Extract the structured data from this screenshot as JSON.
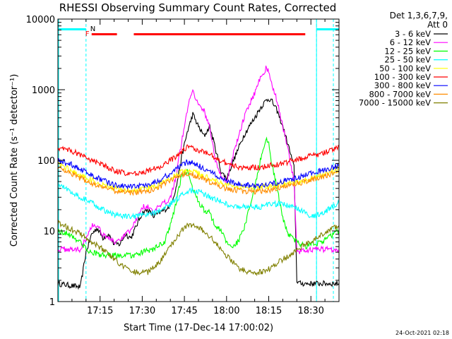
{
  "chart_data": {
    "type": "line",
    "title": "RHESSI Observing Summary Count Rates, Corrected",
    "xlabel": "Start Time (17-Dec-14 17:00:02)",
    "ylabel": "Corrected Count Rate (s⁻¹ detector⁻¹)",
    "yscale": "log",
    "ylim": [
      1,
      10000
    ],
    "xlim_minutes": [
      0,
      100
    ],
    "x_ticks": [
      {
        "minute": 15,
        "label": "17:15"
      },
      {
        "minute": 30,
        "label": "17:30"
      },
      {
        "minute": 45,
        "label": "17:45"
      },
      {
        "minute": 60,
        "label": "18:00"
      },
      {
        "minute": 75,
        "label": "18:15"
      },
      {
        "minute": 90,
        "label": "18:30"
      }
    ],
    "y_ticks": [
      {
        "value": 1,
        "label": "1"
      },
      {
        "value": 10,
        "label": "10"
      },
      {
        "value": 100,
        "label": "100"
      },
      {
        "value": 1000,
        "label": "1000"
      },
      {
        "value": 10000,
        "label": "10000"
      }
    ],
    "legend_header": [
      "Det 1,3,6,7,9,",
      "Att 0"
    ],
    "legend_position": "right",
    "flags": {
      "night_label": "N",
      "flare_label": "F",
      "night_color": "#00ffff",
      "flare_color": "#ff0000",
      "night_intervals": [
        [
          0,
          10
        ],
        [
          92,
          100
        ]
      ],
      "flare_intervals": [
        [
          12,
          21
        ],
        [
          27,
          88
        ]
      ],
      "night_boundaries": [
        10,
        92,
        98
      ]
    },
    "series": [
      {
        "name": "3 - 6 keV",
        "color": "#000000",
        "points": [
          [
            0,
            1.8
          ],
          [
            4,
            1.7
          ],
          [
            8,
            1.6
          ],
          [
            10,
            5
          ],
          [
            12,
            9
          ],
          [
            14,
            11
          ],
          [
            16,
            8
          ],
          [
            18,
            9
          ],
          [
            20,
            6.5
          ],
          [
            22,
            6.5
          ],
          [
            24,
            9
          ],
          [
            26,
            8
          ],
          [
            28,
            12
          ],
          [
            30,
            18
          ],
          [
            32,
            20
          ],
          [
            34,
            16
          ],
          [
            36,
            18
          ],
          [
            38,
            20
          ],
          [
            40,
            23
          ],
          [
            42,
            40
          ],
          [
            44,
            110
          ],
          [
            46,
            250
          ],
          [
            48,
            450
          ],
          [
            50,
            300
          ],
          [
            52,
            220
          ],
          [
            54,
            300
          ],
          [
            56,
            150
          ],
          [
            58,
            70
          ],
          [
            60,
            55
          ],
          [
            62,
            90
          ],
          [
            64,
            140
          ],
          [
            66,
            220
          ],
          [
            68,
            300
          ],
          [
            70,
            400
          ],
          [
            72,
            550
          ],
          [
            74,
            700
          ],
          [
            75,
            750
          ],
          [
            76,
            700
          ],
          [
            78,
            500
          ],
          [
            80,
            300
          ],
          [
            82,
            160
          ],
          [
            84,
            80
          ],
          [
            85,
            2
          ],
          [
            86,
            1.8
          ],
          [
            90,
            1.8
          ],
          [
            95,
            1.8
          ],
          [
            100,
            1.8
          ]
        ]
      },
      {
        "name": "6 - 12 keV",
        "color": "#ff00ff",
        "points": [
          [
            0,
            5.5
          ],
          [
            4,
            5.5
          ],
          [
            8,
            5.5
          ],
          [
            10,
            8
          ],
          [
            12,
            12
          ],
          [
            14,
            12
          ],
          [
            16,
            9
          ],
          [
            18,
            8
          ],
          [
            20,
            7
          ],
          [
            22,
            7
          ],
          [
            24,
            9
          ],
          [
            26,
            10
          ],
          [
            28,
            15
          ],
          [
            30,
            22
          ],
          [
            32,
            22
          ],
          [
            34,
            18
          ],
          [
            36,
            22
          ],
          [
            38,
            25
          ],
          [
            40,
            30
          ],
          [
            42,
            60
          ],
          [
            44,
            180
          ],
          [
            46,
            500
          ],
          [
            47,
            800
          ],
          [
            48,
            1000
          ],
          [
            50,
            600
          ],
          [
            52,
            500
          ],
          [
            54,
            300
          ],
          [
            56,
            100
          ],
          [
            58,
            60
          ],
          [
            60,
            50
          ],
          [
            62,
            110
          ],
          [
            64,
            200
          ],
          [
            66,
            380
          ],
          [
            68,
            600
          ],
          [
            70,
            900
          ],
          [
            72,
            1500
          ],
          [
            74,
            2000
          ],
          [
            75,
            1800
          ],
          [
            76,
            1200
          ],
          [
            78,
            700
          ],
          [
            80,
            300
          ],
          [
            82,
            130
          ],
          [
            84,
            50
          ],
          [
            85,
            5
          ],
          [
            90,
            5.5
          ],
          [
            95,
            5.5
          ],
          [
            100,
            5.5
          ]
        ]
      },
      {
        "name": "12 - 25 keV",
        "color": "#00ff00",
        "points": [
          [
            0,
            10
          ],
          [
            4,
            9
          ],
          [
            8,
            7
          ],
          [
            10,
            5.5
          ],
          [
            12,
            5
          ],
          [
            16,
            4.5
          ],
          [
            20,
            4.5
          ],
          [
            24,
            4.5
          ],
          [
            28,
            4.5
          ],
          [
            30,
            5
          ],
          [
            34,
            5.5
          ],
          [
            38,
            7
          ],
          [
            40,
            12
          ],
          [
            42,
            25
          ],
          [
            44,
            60
          ],
          [
            46,
            70
          ],
          [
            48,
            40
          ],
          [
            50,
            25
          ],
          [
            52,
            20
          ],
          [
            54,
            18
          ],
          [
            56,
            12
          ],
          [
            58,
            10
          ],
          [
            60,
            7
          ],
          [
            62,
            6
          ],
          [
            64,
            7
          ],
          [
            66,
            10
          ],
          [
            68,
            20
          ],
          [
            70,
            40
          ],
          [
            72,
            100
          ],
          [
            74,
            200
          ],
          [
            75,
            180
          ],
          [
            76,
            90
          ],
          [
            78,
            40
          ],
          [
            80,
            15
          ],
          [
            82,
            9
          ],
          [
            85,
            7
          ],
          [
            88,
            6
          ],
          [
            90,
            6.5
          ],
          [
            94,
            7
          ],
          [
            98,
            9
          ],
          [
            100,
            10
          ]
        ]
      },
      {
        "name": "25 - 50 keV",
        "color": "#00ffff",
        "points": [
          [
            0,
            45
          ],
          [
            4,
            38
          ],
          [
            8,
            30
          ],
          [
            12,
            25
          ],
          [
            16,
            20
          ],
          [
            20,
            17
          ],
          [
            24,
            16
          ],
          [
            28,
            16
          ],
          [
            32,
            17
          ],
          [
            36,
            19
          ],
          [
            40,
            24
          ],
          [
            44,
            32
          ],
          [
            46,
            36
          ],
          [
            48,
            38
          ],
          [
            50,
            36
          ],
          [
            52,
            33
          ],
          [
            56,
            28
          ],
          [
            60,
            24
          ],
          [
            64,
            22
          ],
          [
            68,
            22
          ],
          [
            72,
            22
          ],
          [
            76,
            24
          ],
          [
            80,
            24
          ],
          [
            84,
            22
          ],
          [
            88,
            18
          ],
          [
            90,
            16
          ],
          [
            94,
            18
          ],
          [
            98,
            22
          ],
          [
            100,
            25
          ]
        ]
      },
      {
        "name": "50 - 100 keV",
        "color": "#ffff00",
        "points": [
          [
            0,
            90
          ],
          [
            4,
            75
          ],
          [
            8,
            62
          ],
          [
            12,
            52
          ],
          [
            16,
            45
          ],
          [
            20,
            40
          ],
          [
            24,
            38
          ],
          [
            28,
            38
          ],
          [
            32,
            40
          ],
          [
            36,
            45
          ],
          [
            40,
            55
          ],
          [
            44,
            68
          ],
          [
            46,
            72
          ],
          [
            48,
            70
          ],
          [
            50,
            65
          ],
          [
            52,
            60
          ],
          [
            56,
            52
          ],
          [
            60,
            45
          ],
          [
            64,
            42
          ],
          [
            68,
            41
          ],
          [
            72,
            42
          ],
          [
            76,
            44
          ],
          [
            80,
            46
          ],
          [
            84,
            48
          ],
          [
            88,
            52
          ],
          [
            90,
            55
          ],
          [
            94,
            62
          ],
          [
            98,
            70
          ],
          [
            100,
            75
          ]
        ]
      },
      {
        "name": "100 - 300 keV",
        "color": "#ff0000",
        "points": [
          [
            0,
            150
          ],
          [
            4,
            140
          ],
          [
            8,
            120
          ],
          [
            12,
            100
          ],
          [
            16,
            85
          ],
          [
            20,
            72
          ],
          [
            24,
            65
          ],
          [
            28,
            65
          ],
          [
            32,
            70
          ],
          [
            36,
            80
          ],
          [
            40,
            100
          ],
          [
            44,
            130
          ],
          [
            46,
            155
          ],
          [
            48,
            150
          ],
          [
            50,
            140
          ],
          [
            52,
            130
          ],
          [
            56,
            110
          ],
          [
            60,
            90
          ],
          [
            64,
            80
          ],
          [
            68,
            78
          ],
          [
            72,
            80
          ],
          [
            76,
            85
          ],
          [
            80,
            90
          ],
          [
            84,
            100
          ],
          [
            88,
            110
          ],
          [
            90,
            115
          ],
          [
            94,
            125
          ],
          [
            98,
            140
          ],
          [
            100,
            160
          ]
        ]
      },
      {
        "name": "300 - 800 keV",
        "color": "#0000ff",
        "points": [
          [
            0,
            100
          ],
          [
            4,
            90
          ],
          [
            8,
            75
          ],
          [
            12,
            62
          ],
          [
            16,
            52
          ],
          [
            20,
            45
          ],
          [
            24,
            43
          ],
          [
            28,
            43
          ],
          [
            32,
            46
          ],
          [
            36,
            52
          ],
          [
            40,
            65
          ],
          [
            44,
            85
          ],
          [
            46,
            95
          ],
          [
            48,
            92
          ],
          [
            50,
            85
          ],
          [
            52,
            75
          ],
          [
            56,
            62
          ],
          [
            60,
            52
          ],
          [
            64,
            46
          ],
          [
            68,
            44
          ],
          [
            72,
            44
          ],
          [
            76,
            46
          ],
          [
            80,
            50
          ],
          [
            84,
            55
          ],
          [
            88,
            62
          ],
          [
            90,
            65
          ],
          [
            94,
            72
          ],
          [
            98,
            80
          ],
          [
            100,
            85
          ]
        ]
      },
      {
        "name": "800 - 7000 keV",
        "color": "#ff8c00",
        "points": [
          [
            0,
            80
          ],
          [
            4,
            68
          ],
          [
            8,
            56
          ],
          [
            12,
            47
          ],
          [
            16,
            41
          ],
          [
            20,
            37
          ],
          [
            24,
            35
          ],
          [
            28,
            35
          ],
          [
            32,
            37
          ],
          [
            36,
            42
          ],
          [
            40,
            52
          ],
          [
            44,
            62
          ],
          [
            46,
            64
          ],
          [
            48,
            62
          ],
          [
            50,
            58
          ],
          [
            52,
            54
          ],
          [
            56,
            46
          ],
          [
            60,
            40
          ],
          [
            64,
            37
          ],
          [
            68,
            36
          ],
          [
            72,
            36
          ],
          [
            76,
            38
          ],
          [
            80,
            42
          ],
          [
            84,
            46
          ],
          [
            88,
            50
          ],
          [
            90,
            53
          ],
          [
            94,
            58
          ],
          [
            98,
            65
          ],
          [
            100,
            70
          ]
        ]
      },
      {
        "name": "7000 - 15000 keV",
        "color": "#808000",
        "points": [
          [
            0,
            13
          ],
          [
            4,
            11
          ],
          [
            8,
            9
          ],
          [
            12,
            7
          ],
          [
            16,
            5.5
          ],
          [
            20,
            4
          ],
          [
            24,
            3
          ],
          [
            28,
            2.6
          ],
          [
            32,
            2.6
          ],
          [
            36,
            3.5
          ],
          [
            40,
            6
          ],
          [
            44,
            10
          ],
          [
            46,
            12
          ],
          [
            48,
            12
          ],
          [
            50,
            11
          ],
          [
            52,
            10
          ],
          [
            56,
            7
          ],
          [
            60,
            4.5
          ],
          [
            64,
            3
          ],
          [
            68,
            2.6
          ],
          [
            72,
            2.6
          ],
          [
            76,
            3
          ],
          [
            80,
            4
          ],
          [
            84,
            5
          ],
          [
            88,
            6.5
          ],
          [
            90,
            7
          ],
          [
            94,
            9
          ],
          [
            98,
            11
          ],
          [
            100,
            12
          ]
        ]
      }
    ]
  },
  "footer_date": "24-Oct-2021 02:18"
}
